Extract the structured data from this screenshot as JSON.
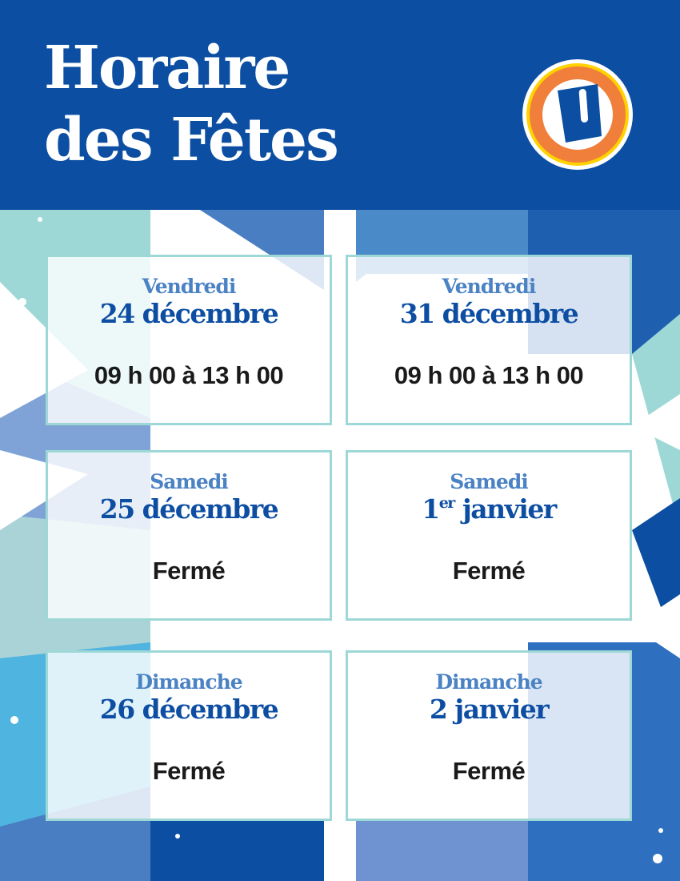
{
  "header": {
    "title_line1": "Horaire",
    "title_line2": "des Fêtes",
    "logo": "U-logo"
  },
  "colors": {
    "header_bg": "#0b4ea2",
    "card_border": "#9dd8d6",
    "day_text": "#4a82c4",
    "date_text": "#0d4ea3",
    "logo_orange": "#f07f3c",
    "logo_yellow": "#ffd200"
  },
  "cards": [
    {
      "day": "Vendredi",
      "date_pre": "24 décembre",
      "date_sup": "",
      "date_post": "",
      "hours": "09 h 00 à 13 h 00"
    },
    {
      "day": "Vendredi",
      "date_pre": "31 décembre",
      "date_sup": "",
      "date_post": "",
      "hours": "09 h 00 à 13 h 00"
    },
    {
      "day": "Samedi",
      "date_pre": "25 décembre",
      "date_sup": "",
      "date_post": "",
      "hours": "Fermé"
    },
    {
      "day": "Samedi",
      "date_pre": "1",
      "date_sup": "er",
      "date_post": " janvier",
      "hours": "Fermé"
    },
    {
      "day": "Dimanche",
      "date_pre": "26 décembre",
      "date_sup": "",
      "date_post": "",
      "hours": "Fermé"
    },
    {
      "day": "Dimanche",
      "date_pre": "2",
      "date_sup": "",
      "date_post": " janvier",
      "hours": "Fermé"
    }
  ]
}
